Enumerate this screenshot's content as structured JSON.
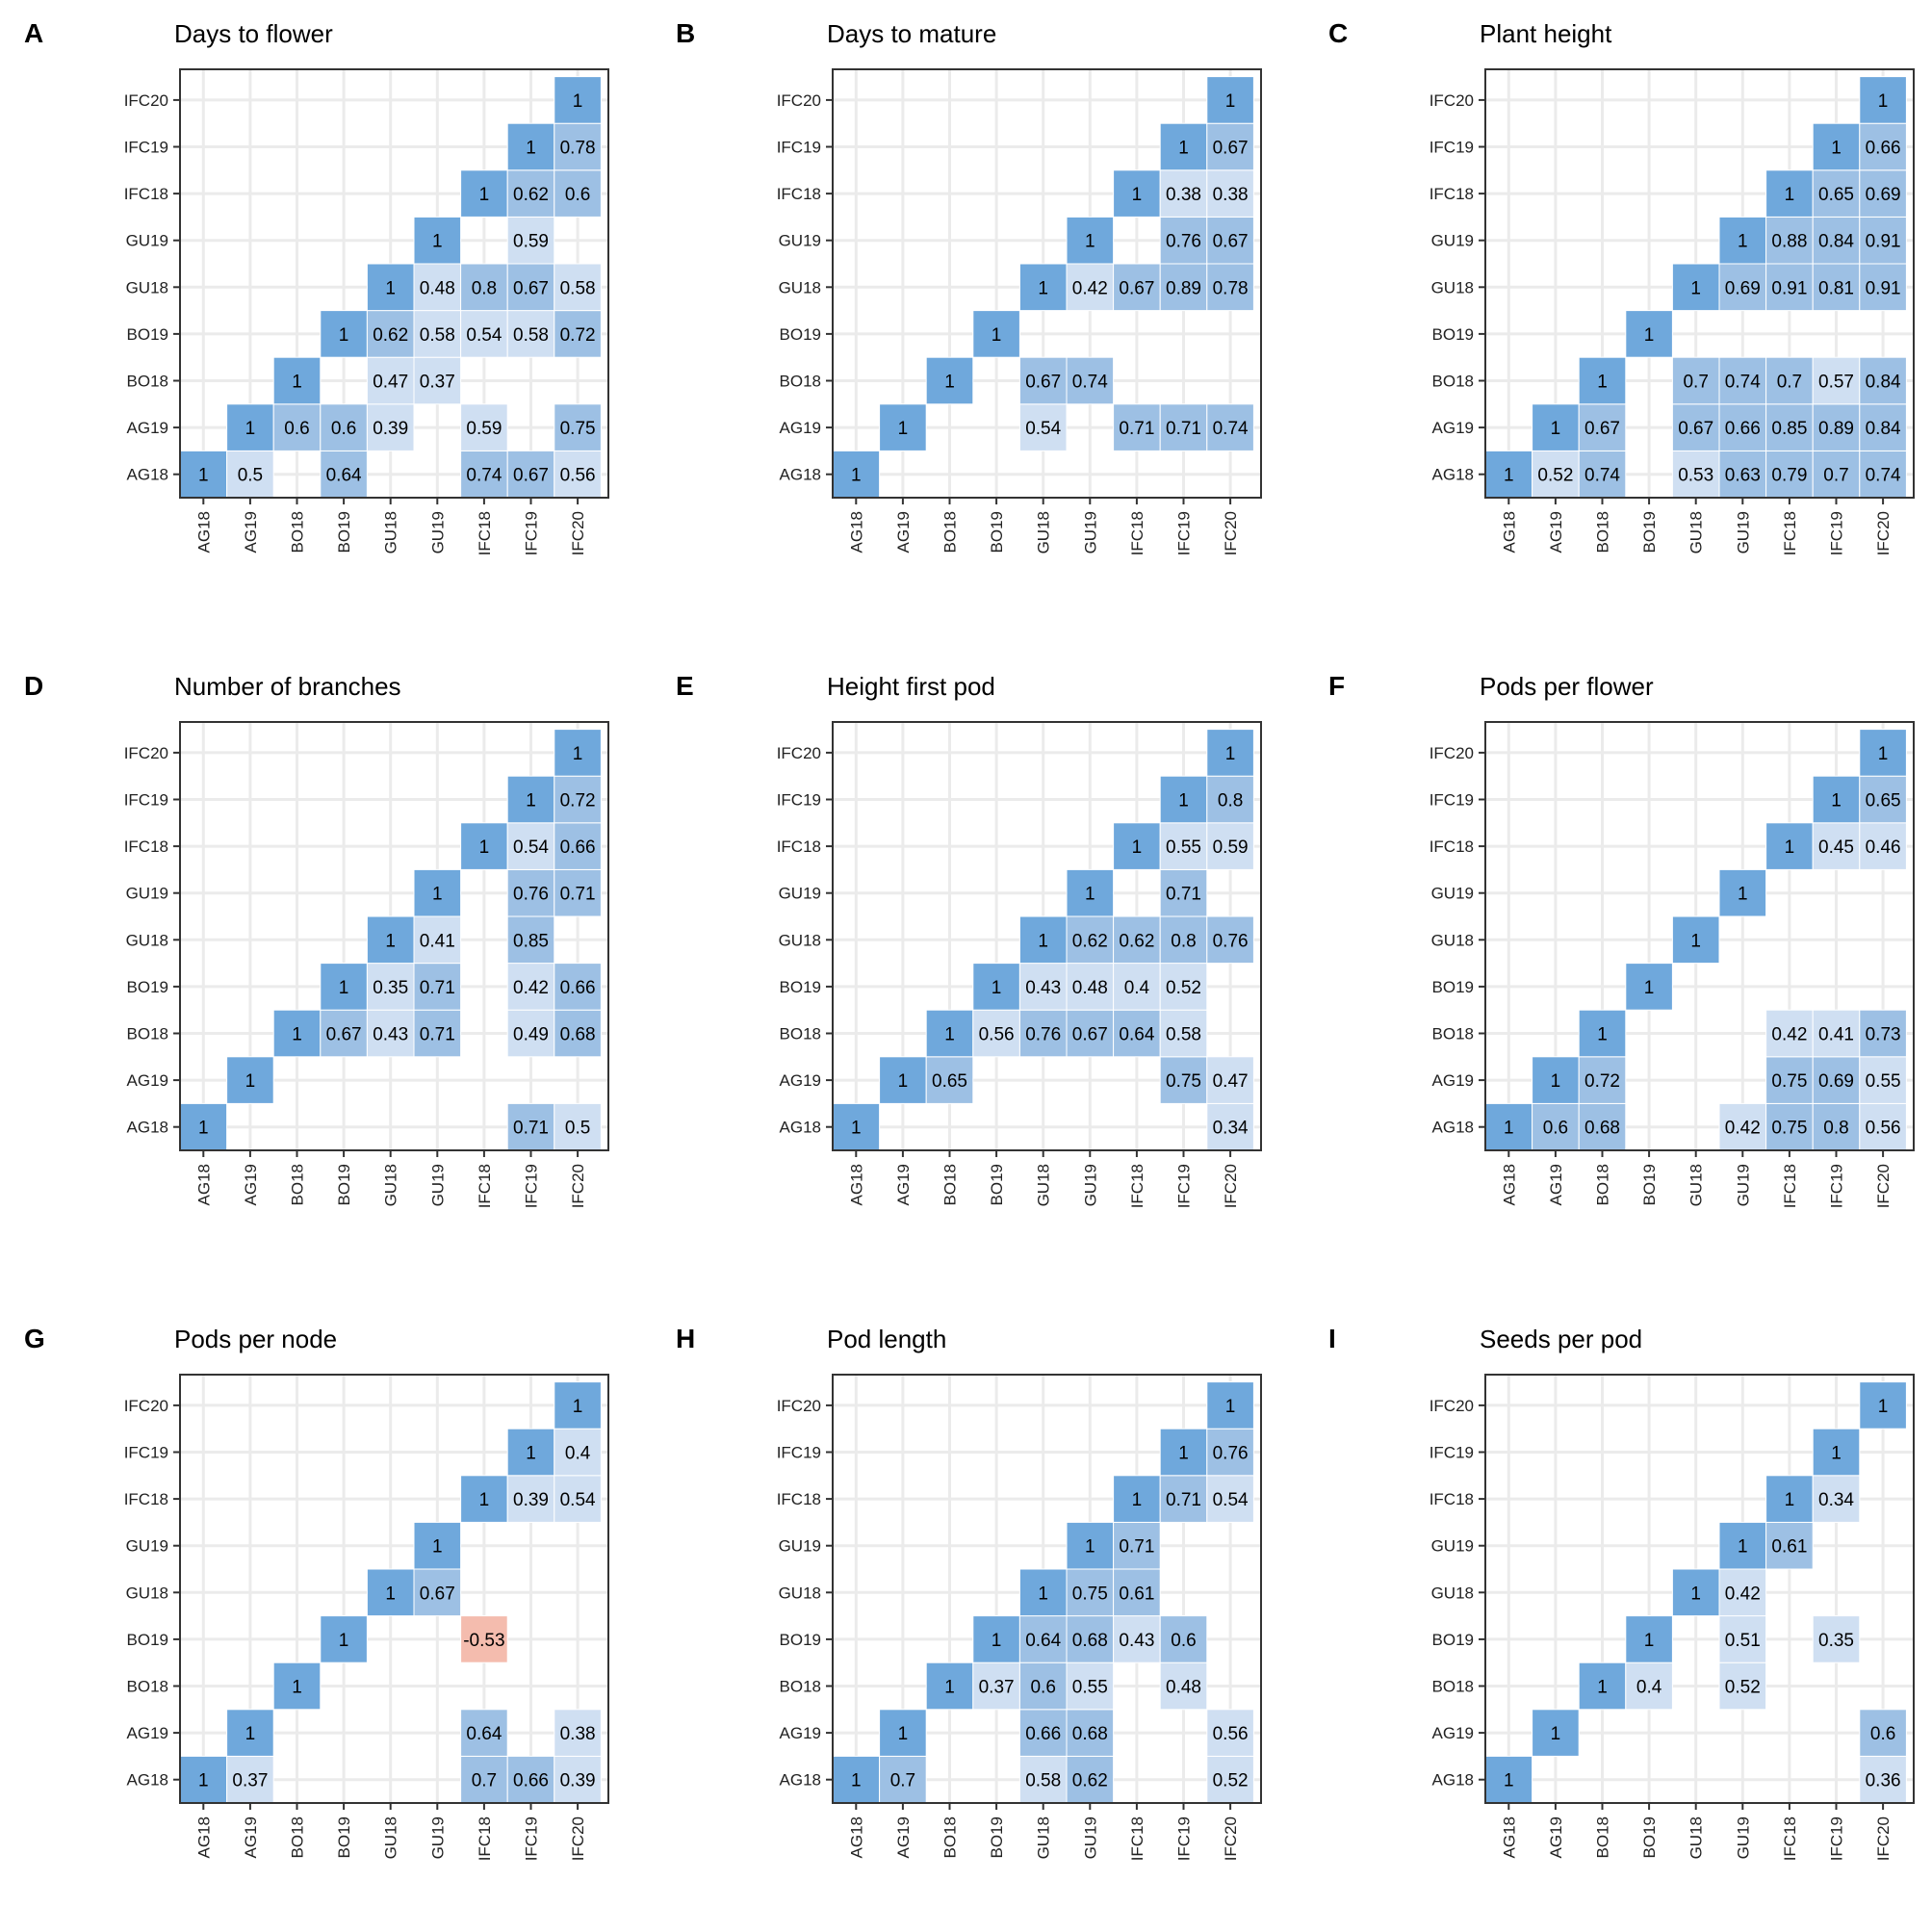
{
  "figure": {
    "panel_letters": [
      "A",
      "B",
      "C",
      "D",
      "E",
      "F",
      "G",
      "H",
      "I"
    ]
  },
  "colors": {
    "cell_strong": "#6fa8dc",
    "cell_mid": "#9dc0e4",
    "cell_light": "#cfdff2",
    "cell_negative": "#f4bcae",
    "grid": "#ebebeb",
    "frame": "#333333",
    "text": "#000000"
  },
  "chart_data": [
    {
      "type": "heatmap",
      "panel": "A",
      "title": "Days to flower",
      "categories": [
        "AG18",
        "AG19",
        "BO18",
        "BO19",
        "GU18",
        "GU19",
        "IFC18",
        "IFC19",
        "IFC20"
      ],
      "cells": [
        [
          0,
          0,
          "1"
        ],
        [
          1,
          0,
          "0.5"
        ],
        [
          3,
          0,
          "0.64"
        ],
        [
          6,
          0,
          "0.74"
        ],
        [
          7,
          0,
          "0.67"
        ],
        [
          8,
          0,
          "0.56"
        ],
        [
          1,
          1,
          "1"
        ],
        [
          2,
          1,
          "0.6"
        ],
        [
          3,
          1,
          "0.6"
        ],
        [
          4,
          1,
          "0.39"
        ],
        [
          6,
          1,
          "0.59"
        ],
        [
          8,
          1,
          "0.75"
        ],
        [
          2,
          2,
          "1"
        ],
        [
          4,
          2,
          "0.47"
        ],
        [
          5,
          2,
          "0.37"
        ],
        [
          3,
          3,
          "1"
        ],
        [
          4,
          3,
          "0.62"
        ],
        [
          5,
          3,
          "0.58"
        ],
        [
          6,
          3,
          "0.54"
        ],
        [
          7,
          3,
          "0.58"
        ],
        [
          8,
          3,
          "0.72"
        ],
        [
          4,
          4,
          "1"
        ],
        [
          5,
          4,
          "0.48"
        ],
        [
          6,
          4,
          "0.8"
        ],
        [
          7,
          4,
          "0.67"
        ],
        [
          8,
          4,
          "0.58"
        ],
        [
          5,
          5,
          "1"
        ],
        [
          7,
          5,
          "0.59"
        ],
        [
          6,
          6,
          "1"
        ],
        [
          7,
          6,
          "0.62"
        ],
        [
          8,
          6,
          "0.6"
        ],
        [
          7,
          7,
          "1"
        ],
        [
          8,
          7,
          "0.78"
        ],
        [
          8,
          8,
          "1"
        ]
      ]
    },
    {
      "type": "heatmap",
      "panel": "B",
      "title": "Days to mature",
      "categories": [
        "AG18",
        "AG19",
        "BO18",
        "BO19",
        "GU18",
        "GU19",
        "IFC18",
        "IFC19",
        "IFC20"
      ],
      "cells": [
        [
          0,
          0,
          "1"
        ],
        [
          1,
          1,
          "1"
        ],
        [
          4,
          1,
          "0.54"
        ],
        [
          6,
          1,
          "0.71"
        ],
        [
          7,
          1,
          "0.71"
        ],
        [
          8,
          1,
          "0.74"
        ],
        [
          2,
          2,
          "1"
        ],
        [
          4,
          2,
          "0.67"
        ],
        [
          5,
          2,
          "0.74"
        ],
        [
          3,
          3,
          "1"
        ],
        [
          4,
          4,
          "1"
        ],
        [
          5,
          4,
          "0.42"
        ],
        [
          6,
          4,
          "0.67"
        ],
        [
          7,
          4,
          "0.89"
        ],
        [
          8,
          4,
          "0.78"
        ],
        [
          5,
          5,
          "1"
        ],
        [
          7,
          5,
          "0.76"
        ],
        [
          8,
          5,
          "0.67"
        ],
        [
          6,
          6,
          "1"
        ],
        [
          7,
          6,
          "0.38"
        ],
        [
          8,
          6,
          "0.38"
        ],
        [
          7,
          7,
          "1"
        ],
        [
          8,
          7,
          "0.67"
        ],
        [
          8,
          8,
          "1"
        ]
      ]
    },
    {
      "type": "heatmap",
      "panel": "C",
      "title": "Plant height",
      "categories": [
        "AG18",
        "AG19",
        "BO18",
        "BO19",
        "GU18",
        "GU19",
        "IFC18",
        "IFC19",
        "IFC20"
      ],
      "cells": [
        [
          0,
          0,
          "1"
        ],
        [
          1,
          0,
          "0.52"
        ],
        [
          2,
          0,
          "0.74"
        ],
        [
          4,
          0,
          "0.53"
        ],
        [
          5,
          0,
          "0.63"
        ],
        [
          6,
          0,
          "0.79"
        ],
        [
          7,
          0,
          "0.7"
        ],
        [
          8,
          0,
          "0.74"
        ],
        [
          1,
          1,
          "1"
        ],
        [
          2,
          1,
          "0.67"
        ],
        [
          4,
          1,
          "0.67"
        ],
        [
          5,
          1,
          "0.66"
        ],
        [
          6,
          1,
          "0.85"
        ],
        [
          7,
          1,
          "0.89"
        ],
        [
          8,
          1,
          "0.84"
        ],
        [
          2,
          2,
          "1"
        ],
        [
          4,
          2,
          "0.7"
        ],
        [
          5,
          2,
          "0.74"
        ],
        [
          6,
          2,
          "0.7"
        ],
        [
          7,
          2,
          "0.57"
        ],
        [
          8,
          2,
          "0.84"
        ],
        [
          3,
          3,
          "1"
        ],
        [
          4,
          4,
          "1"
        ],
        [
          5,
          4,
          "0.69"
        ],
        [
          6,
          4,
          "0.91"
        ],
        [
          7,
          4,
          "0.81"
        ],
        [
          8,
          4,
          "0.91"
        ],
        [
          5,
          5,
          "1"
        ],
        [
          6,
          5,
          "0.88"
        ],
        [
          7,
          5,
          "0.84"
        ],
        [
          8,
          5,
          "0.91"
        ],
        [
          6,
          6,
          "1"
        ],
        [
          7,
          6,
          "0.65"
        ],
        [
          8,
          6,
          "0.69"
        ],
        [
          7,
          7,
          "1"
        ],
        [
          8,
          7,
          "0.66"
        ],
        [
          8,
          8,
          "1"
        ]
      ]
    },
    {
      "type": "heatmap",
      "panel": "D",
      "title": "Number of branches",
      "categories": [
        "AG18",
        "AG19",
        "BO18",
        "BO19",
        "GU18",
        "GU19",
        "IFC18",
        "IFC19",
        "IFC20"
      ],
      "cells": [
        [
          0,
          0,
          "1"
        ],
        [
          7,
          0,
          "0.71"
        ],
        [
          8,
          0,
          "0.5"
        ],
        [
          1,
          1,
          "1"
        ],
        [
          2,
          2,
          "1"
        ],
        [
          3,
          2,
          "0.67"
        ],
        [
          4,
          2,
          "0.43"
        ],
        [
          5,
          2,
          "0.71"
        ],
        [
          7,
          2,
          "0.49"
        ],
        [
          8,
          2,
          "0.68"
        ],
        [
          3,
          3,
          "1"
        ],
        [
          4,
          3,
          "0.35"
        ],
        [
          5,
          3,
          "0.71"
        ],
        [
          7,
          3,
          "0.42"
        ],
        [
          8,
          3,
          "0.66"
        ],
        [
          4,
          4,
          "1"
        ],
        [
          5,
          4,
          "0.41"
        ],
        [
          7,
          4,
          "0.85"
        ],
        [
          5,
          5,
          "1"
        ],
        [
          7,
          5,
          "0.76"
        ],
        [
          8,
          5,
          "0.71"
        ],
        [
          6,
          6,
          "1"
        ],
        [
          7,
          6,
          "0.54"
        ],
        [
          8,
          6,
          "0.66"
        ],
        [
          7,
          7,
          "1"
        ],
        [
          8,
          7,
          "0.72"
        ],
        [
          8,
          8,
          "1"
        ]
      ]
    },
    {
      "type": "heatmap",
      "panel": "E",
      "title": "Height first pod",
      "categories": [
        "AG18",
        "AG19",
        "BO18",
        "BO19",
        "GU18",
        "GU19",
        "IFC18",
        "IFC19",
        "IFC20"
      ],
      "cells": [
        [
          0,
          0,
          "1"
        ],
        [
          8,
          0,
          "0.34"
        ],
        [
          1,
          1,
          "1"
        ],
        [
          2,
          1,
          "0.65"
        ],
        [
          7,
          1,
          "0.75"
        ],
        [
          8,
          1,
          "0.47"
        ],
        [
          2,
          2,
          "1"
        ],
        [
          3,
          2,
          "0.56"
        ],
        [
          4,
          2,
          "0.76"
        ],
        [
          5,
          2,
          "0.67"
        ],
        [
          6,
          2,
          "0.64"
        ],
        [
          7,
          2,
          "0.58"
        ],
        [
          3,
          3,
          "1"
        ],
        [
          4,
          3,
          "0.43"
        ],
        [
          5,
          3,
          "0.48"
        ],
        [
          6,
          3,
          "0.4"
        ],
        [
          7,
          3,
          "0.52"
        ],
        [
          4,
          4,
          "1"
        ],
        [
          5,
          4,
          "0.62"
        ],
        [
          6,
          4,
          "0.62"
        ],
        [
          7,
          4,
          "0.8"
        ],
        [
          8,
          4,
          "0.76"
        ],
        [
          5,
          5,
          "1"
        ],
        [
          7,
          5,
          "0.71"
        ],
        [
          6,
          6,
          "1"
        ],
        [
          7,
          6,
          "0.55"
        ],
        [
          8,
          6,
          "0.59"
        ],
        [
          7,
          7,
          "1"
        ],
        [
          8,
          7,
          "0.8"
        ],
        [
          8,
          8,
          "1"
        ]
      ]
    },
    {
      "type": "heatmap",
      "panel": "F",
      "title": "Pods per flower",
      "categories": [
        "AG18",
        "AG19",
        "BO18",
        "BO19",
        "GU18",
        "GU19",
        "IFC18",
        "IFC19",
        "IFC20"
      ],
      "cells": [
        [
          0,
          0,
          "1"
        ],
        [
          1,
          0,
          "0.6"
        ],
        [
          2,
          0,
          "0.68"
        ],
        [
          5,
          0,
          "0.42"
        ],
        [
          6,
          0,
          "0.75"
        ],
        [
          7,
          0,
          "0.8"
        ],
        [
          8,
          0,
          "0.56"
        ],
        [
          1,
          1,
          "1"
        ],
        [
          2,
          1,
          "0.72"
        ],
        [
          6,
          1,
          "0.75"
        ],
        [
          7,
          1,
          "0.69"
        ],
        [
          8,
          1,
          "0.55"
        ],
        [
          2,
          2,
          "1"
        ],
        [
          6,
          2,
          "0.42"
        ],
        [
          7,
          2,
          "0.41"
        ],
        [
          8,
          2,
          "0.73"
        ],
        [
          3,
          3,
          "1"
        ],
        [
          4,
          4,
          "1"
        ],
        [
          5,
          5,
          "1"
        ],
        [
          6,
          6,
          "1"
        ],
        [
          7,
          6,
          "0.45"
        ],
        [
          8,
          6,
          "0.46"
        ],
        [
          7,
          7,
          "1"
        ],
        [
          8,
          7,
          "0.65"
        ],
        [
          8,
          8,
          "1"
        ]
      ]
    },
    {
      "type": "heatmap",
      "panel": "G",
      "title": "Pods per node",
      "categories": [
        "AG18",
        "AG19",
        "BO18",
        "BO19",
        "GU18",
        "GU19",
        "IFC18",
        "IFC19",
        "IFC20"
      ],
      "cells": [
        [
          0,
          0,
          "1"
        ],
        [
          1,
          0,
          "0.37"
        ],
        [
          6,
          0,
          "0.7"
        ],
        [
          7,
          0,
          "0.66"
        ],
        [
          8,
          0,
          "0.39"
        ],
        [
          1,
          1,
          "1"
        ],
        [
          6,
          1,
          "0.64"
        ],
        [
          8,
          1,
          "0.38"
        ],
        [
          2,
          2,
          "1"
        ],
        [
          3,
          3,
          "1"
        ],
        [
          6,
          3,
          "-0.53"
        ],
        [
          4,
          4,
          "1"
        ],
        [
          5,
          4,
          "0.67"
        ],
        [
          5,
          5,
          "1"
        ],
        [
          6,
          6,
          "1"
        ],
        [
          7,
          6,
          "0.39"
        ],
        [
          8,
          6,
          "0.54"
        ],
        [
          7,
          7,
          "1"
        ],
        [
          8,
          7,
          "0.4"
        ],
        [
          8,
          8,
          "1"
        ]
      ]
    },
    {
      "type": "heatmap",
      "panel": "H",
      "title": "Pod length",
      "categories": [
        "AG18",
        "AG19",
        "BO18",
        "BO19",
        "GU18",
        "GU19",
        "IFC18",
        "IFC19",
        "IFC20"
      ],
      "cells": [
        [
          0,
          0,
          "1"
        ],
        [
          1,
          0,
          "0.7"
        ],
        [
          4,
          0,
          "0.58"
        ],
        [
          5,
          0,
          "0.62"
        ],
        [
          8,
          0,
          "0.52"
        ],
        [
          1,
          1,
          "1"
        ],
        [
          4,
          1,
          "0.66"
        ],
        [
          5,
          1,
          "0.68"
        ],
        [
          8,
          1,
          "0.56"
        ],
        [
          2,
          2,
          "1"
        ],
        [
          3,
          2,
          "0.37"
        ],
        [
          4,
          2,
          "0.6"
        ],
        [
          5,
          2,
          "0.55"
        ],
        [
          7,
          2,
          "0.48"
        ],
        [
          3,
          3,
          "1"
        ],
        [
          4,
          3,
          "0.64"
        ],
        [
          5,
          3,
          "0.68"
        ],
        [
          6,
          3,
          "0.43"
        ],
        [
          7,
          3,
          "0.6"
        ],
        [
          4,
          4,
          "1"
        ],
        [
          5,
          4,
          "0.75"
        ],
        [
          6,
          4,
          "0.61"
        ],
        [
          5,
          5,
          "1"
        ],
        [
          6,
          5,
          "0.71"
        ],
        [
          6,
          6,
          "1"
        ],
        [
          7,
          6,
          "0.71"
        ],
        [
          8,
          6,
          "0.54"
        ],
        [
          7,
          7,
          "1"
        ],
        [
          8,
          7,
          "0.76"
        ],
        [
          8,
          8,
          "1"
        ]
      ]
    },
    {
      "type": "heatmap",
      "panel": "I",
      "title": "Seeds per pod",
      "categories": [
        "AG18",
        "AG19",
        "BO18",
        "BO19",
        "GU18",
        "GU19",
        "IFC18",
        "IFC19",
        "IFC20"
      ],
      "cells": [
        [
          0,
          0,
          "1"
        ],
        [
          8,
          0,
          "0.36"
        ],
        [
          1,
          1,
          "1"
        ],
        [
          8,
          1,
          "0.6"
        ],
        [
          2,
          2,
          "1"
        ],
        [
          3,
          2,
          "0.4"
        ],
        [
          5,
          2,
          "0.52"
        ],
        [
          3,
          3,
          "1"
        ],
        [
          5,
          3,
          "0.51"
        ],
        [
          7,
          3,
          "0.35"
        ],
        [
          4,
          4,
          "1"
        ],
        [
          5,
          4,
          "0.42"
        ],
        [
          5,
          5,
          "1"
        ],
        [
          6,
          5,
          "0.61"
        ],
        [
          6,
          6,
          "1"
        ],
        [
          7,
          6,
          "0.34"
        ],
        [
          7,
          7,
          "1"
        ],
        [
          8,
          8,
          "1"
        ]
      ]
    }
  ]
}
